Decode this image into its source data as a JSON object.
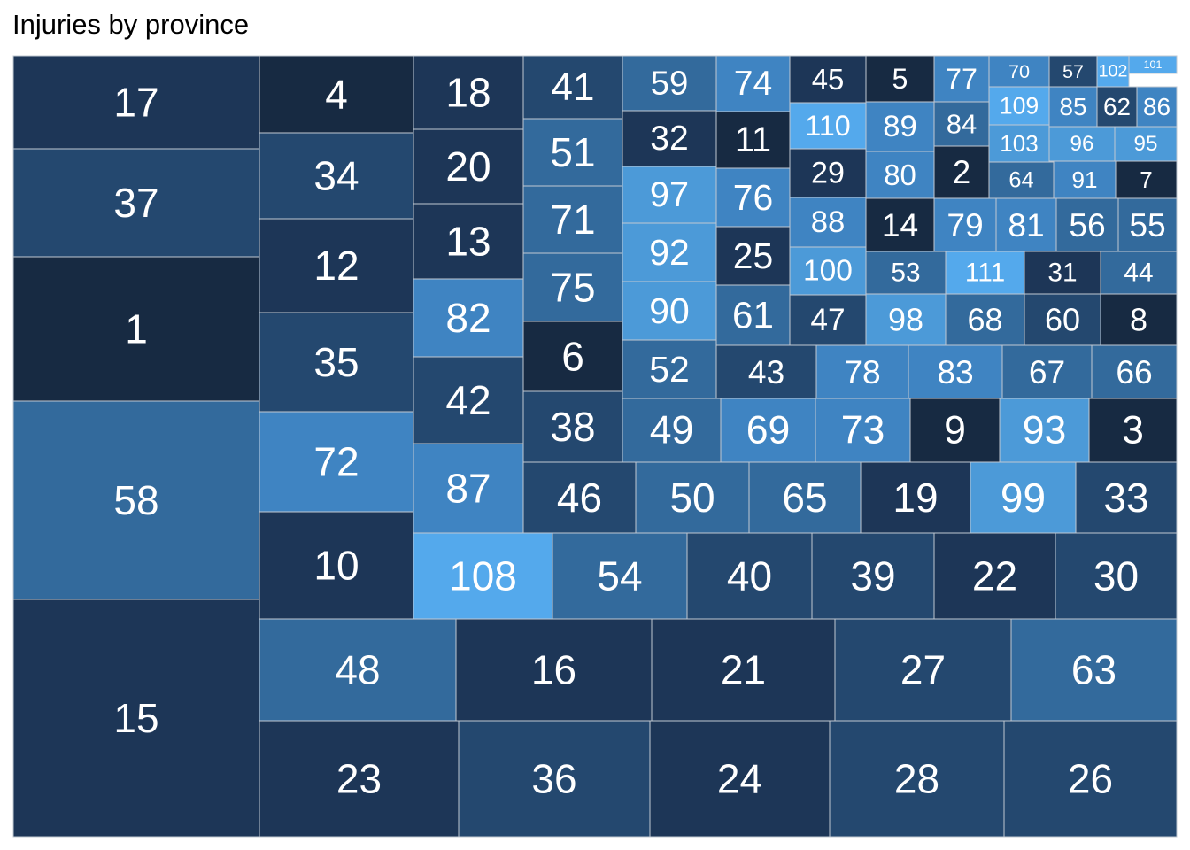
{
  "chart_data": {
    "type": "treemap",
    "title": "Injuries by province",
    "colors": {
      "darkest": "#172a42",
      "dark": "#1d3657",
      "mid_dark": "#24486f",
      "mid": "#336a9c",
      "mid_light": "#3f84c2",
      "light": "#4c9ad8",
      "lightest": "#54a9ec",
      "tile_border": "#c0c8d2"
    },
    "columns": [
      {
        "tiles": [
          {
            "label": "17",
            "shade": "dark"
          },
          {
            "label": "37",
            "shade": "mid_dark"
          },
          {
            "label": "1",
            "shade": "darkest"
          },
          {
            "label": "58",
            "shade": "mid"
          },
          {
            "label": "15",
            "shade": "dark"
          }
        ]
      },
      {
        "tiles": [
          {
            "label": "4",
            "shade": "darkest"
          },
          {
            "label": "34",
            "shade": "mid_dark"
          },
          {
            "label": "12",
            "shade": "dark"
          },
          {
            "label": "35",
            "shade": "mid_dark"
          },
          {
            "label": "72",
            "shade": "mid_light"
          },
          {
            "label": "10",
            "shade": "dark"
          }
        ]
      },
      {
        "tiles": [
          {
            "label": "18",
            "shade": "dark"
          },
          {
            "label": "20",
            "shade": "dark"
          },
          {
            "label": "13",
            "shade": "dark"
          },
          {
            "label": "82",
            "shade": "mid_light"
          },
          {
            "label": "42",
            "shade": "mid_dark"
          },
          {
            "label": "87",
            "shade": "mid_light"
          }
        ]
      },
      {
        "tiles": [
          {
            "label": "41",
            "shade": "mid_dark"
          },
          {
            "label": "51",
            "shade": "mid"
          },
          {
            "label": "71",
            "shade": "mid"
          },
          {
            "label": "75",
            "shade": "mid"
          },
          {
            "label": "6",
            "shade": "darkest"
          },
          {
            "label": "38",
            "shade": "mid_dark"
          }
        ]
      }
    ],
    "rows": [
      {
        "label": "59",
        "shade": "mid"
      },
      {
        "label": "74",
        "shade": "mid_light"
      },
      {
        "label": "45",
        "shade": "dark"
      },
      {
        "label": "5",
        "shade": "darkest"
      },
      {
        "label": "77",
        "shade": "mid_light"
      },
      {
        "label": "70",
        "shade": "mid_light"
      },
      {
        "label": "57",
        "shade": "mid_dark"
      },
      {
        "label": "102",
        "shade": "lightest"
      },
      {
        "label": "101",
        "shade": "lightest"
      },
      {
        "label": "32",
        "shade": "dark"
      },
      {
        "label": "11",
        "shade": "darkest"
      },
      {
        "label": "110",
        "shade": "lightest"
      },
      {
        "label": "89",
        "shade": "mid_light"
      },
      {
        "label": "84",
        "shade": "mid"
      },
      {
        "label": "109",
        "shade": "lightest"
      },
      {
        "label": "85",
        "shade": "mid_light"
      },
      {
        "label": "62",
        "shade": "mid_dark"
      },
      {
        "label": "86",
        "shade": "mid_light"
      },
      {
        "label": "103",
        "shade": "light"
      },
      {
        "label": "96",
        "shade": "light"
      },
      {
        "label": "95",
        "shade": "light"
      },
      {
        "label": "97",
        "shade": "light"
      },
      {
        "label": "76",
        "shade": "mid_light"
      },
      {
        "label": "29",
        "shade": "dark"
      },
      {
        "label": "80",
        "shade": "mid_light"
      },
      {
        "label": "2",
        "shade": "darkest"
      },
      {
        "label": "64",
        "shade": "mid"
      },
      {
        "label": "91",
        "shade": "mid_light"
      },
      {
        "label": "7",
        "shade": "darkest"
      },
      {
        "label": "92",
        "shade": "light"
      },
      {
        "label": "25",
        "shade": "dark"
      },
      {
        "label": "88",
        "shade": "mid_light"
      },
      {
        "label": "14",
        "shade": "darkest"
      },
      {
        "label": "79",
        "shade": "mid_light"
      },
      {
        "label": "81",
        "shade": "mid_light"
      },
      {
        "label": "56",
        "shade": "mid"
      },
      {
        "label": "55",
        "shade": "mid"
      },
      {
        "label": "100",
        "shade": "light"
      },
      {
        "label": "53",
        "shade": "mid"
      },
      {
        "label": "111",
        "shade": "lightest"
      },
      {
        "label": "31",
        "shade": "dark"
      },
      {
        "label": "44",
        "shade": "mid"
      },
      {
        "label": "90",
        "shade": "light"
      },
      {
        "label": "61",
        "shade": "mid"
      },
      {
        "label": "47",
        "shade": "mid_dark"
      },
      {
        "label": "98",
        "shade": "light"
      },
      {
        "label": "68",
        "shade": "mid"
      },
      {
        "label": "60",
        "shade": "mid_dark"
      },
      {
        "label": "8",
        "shade": "darkest"
      },
      {
        "label": "52",
        "shade": "mid"
      },
      {
        "label": "43",
        "shade": "mid_dark"
      },
      {
        "label": "78",
        "shade": "mid_light"
      },
      {
        "label": "83",
        "shade": "mid_light"
      },
      {
        "label": "67",
        "shade": "mid"
      },
      {
        "label": "66",
        "shade": "mid"
      },
      {
        "label": "49",
        "shade": "mid"
      },
      {
        "label": "69",
        "shade": "mid_light"
      },
      {
        "label": "73",
        "shade": "mid_light"
      },
      {
        "label": "9",
        "shade": "darkest"
      },
      {
        "label": "93",
        "shade": "light"
      },
      {
        "label": "3",
        "shade": "darkest"
      },
      {
        "label": "46",
        "shade": "mid_dark"
      },
      {
        "label": "50",
        "shade": "mid"
      },
      {
        "label": "65",
        "shade": "mid"
      },
      {
        "label": "19",
        "shade": "dark"
      },
      {
        "label": "99",
        "shade": "light"
      },
      {
        "label": "33",
        "shade": "mid_dark"
      },
      {
        "label": "108",
        "shade": "lightest"
      },
      {
        "label": "54",
        "shade": "mid"
      },
      {
        "label": "40",
        "shade": "mid_dark"
      },
      {
        "label": "39",
        "shade": "mid_dark"
      },
      {
        "label": "22",
        "shade": "dark"
      },
      {
        "label": "30",
        "shade": "mid_dark"
      },
      {
        "label": "48",
        "shade": "mid"
      },
      {
        "label": "16",
        "shade": "dark"
      },
      {
        "label": "21",
        "shade": "dark"
      },
      {
        "label": "27",
        "shade": "mid_dark"
      },
      {
        "label": "63",
        "shade": "mid"
      },
      {
        "label": "23",
        "shade": "dark"
      },
      {
        "label": "36",
        "shade": "mid_dark"
      },
      {
        "label": "24",
        "shade": "dark"
      },
      {
        "label": "28",
        "shade": "mid_dark"
      },
      {
        "label": "26",
        "shade": "mid_dark"
      }
    ]
  }
}
